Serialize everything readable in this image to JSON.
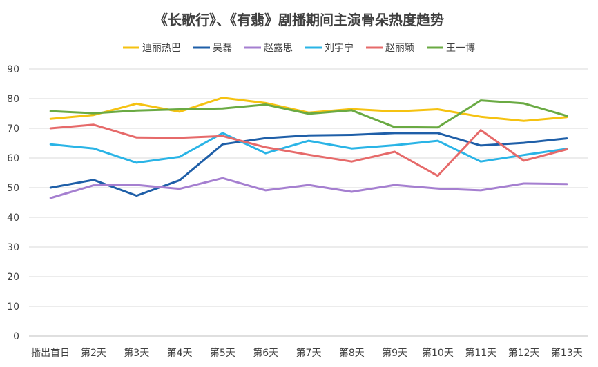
{
  "chart_data": {
    "type": "line",
    "title": "《长歌行》、《有翡》剧播期间主演骨朵热度趋势",
    "xlabel": "",
    "ylabel": "",
    "ylim": [
      0,
      90
    ],
    "yticks": [
      0,
      10,
      20,
      30,
      40,
      50,
      60,
      70,
      80,
      90
    ],
    "grid": true,
    "legend_position": "top",
    "categories": [
      "播出首日",
      "第2天",
      "第3天",
      "第4天",
      "第5天",
      "第6天",
      "第7天",
      "第8天",
      "第9天",
      "第10天",
      "第11天",
      "第12天",
      "第13天"
    ],
    "series": [
      {
        "name": "迪丽热巴",
        "color": "#f5c211",
        "values": [
          73.2,
          74.5,
          78.3,
          75.6,
          80.3,
          78.5,
          75.3,
          76.5,
          75.7,
          76.4,
          73.9,
          72.5,
          73.8
        ]
      },
      {
        "name": "吴磊",
        "color": "#1f5fa8",
        "values": [
          50.0,
          52.6,
          47.3,
          52.5,
          64.6,
          66.7,
          67.6,
          67.8,
          68.4,
          68.4,
          64.2,
          65.1,
          66.6
        ]
      },
      {
        "name": "赵露思",
        "color": "#a57fd0",
        "values": [
          46.5,
          50.8,
          50.9,
          49.6,
          53.2,
          49.1,
          50.9,
          48.6,
          50.9,
          49.7,
          49.1,
          51.4,
          51.2
        ]
      },
      {
        "name": "刘宇宁",
        "color": "#2ab4e6",
        "values": [
          64.6,
          63.2,
          58.4,
          60.4,
          68.4,
          61.6,
          65.8,
          63.2,
          64.3,
          65.8,
          58.8,
          61.0,
          63.1
        ]
      },
      {
        "name": "赵丽颖",
        "color": "#e66a6a",
        "values": [
          70.0,
          71.2,
          66.9,
          66.8,
          67.4,
          63.6,
          61.1,
          58.8,
          62.1,
          54.0,
          69.4,
          59.1,
          62.9
        ]
      },
      {
        "name": "王一博",
        "color": "#6aaa43",
        "values": [
          75.8,
          75.1,
          76.0,
          76.4,
          76.7,
          78.0,
          74.9,
          76.1,
          70.4,
          70.3,
          79.4,
          78.4,
          74.2
        ]
      }
    ]
  }
}
